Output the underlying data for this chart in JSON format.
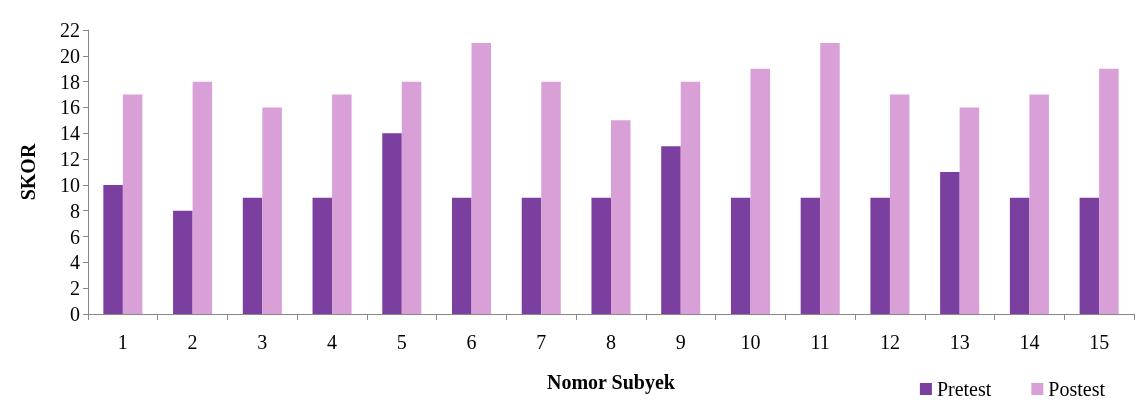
{
  "chart_data": {
    "type": "bar",
    "xlabel": "Nomor Subyek",
    "ylabel": "SKOR",
    "categories": [
      "1",
      "2",
      "3",
      "4",
      "5",
      "6",
      "7",
      "8",
      "9",
      "10",
      "11",
      "12",
      "13",
      "14",
      "15"
    ],
    "series": [
      {
        "name": "Pretest",
        "color": "#7b3fa0",
        "values": [
          10,
          8,
          9,
          9,
          14,
          9,
          9,
          9,
          13,
          9,
          9,
          9,
          11,
          9,
          9
        ]
      },
      {
        "name": "Postest",
        "color": "#d9a0d8",
        "values": [
          17,
          18,
          16,
          17,
          18,
          21,
          18,
          15,
          18,
          19,
          21,
          17,
          16,
          17,
          19
        ]
      }
    ],
    "ylim": [
      0,
      22
    ],
    "yticks": [
      0,
      2,
      4,
      6,
      8,
      10,
      12,
      14,
      16,
      18,
      20,
      22
    ],
    "grid": false,
    "legend": "bottom right"
  }
}
